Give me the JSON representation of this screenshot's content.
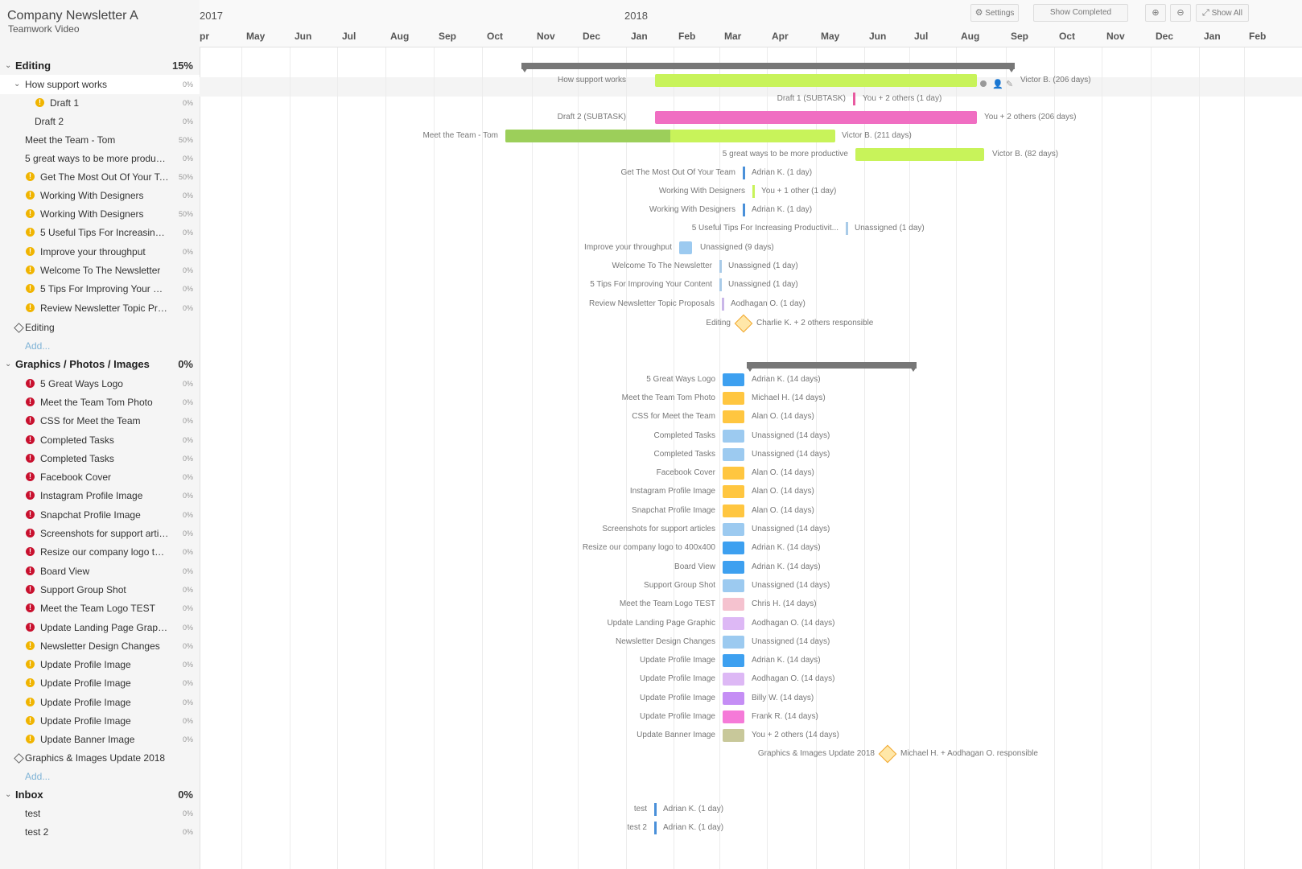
{
  "project": {
    "title": "Company Newsletter A",
    "subtitle": "Teamwork Video"
  },
  "toolbar": {
    "settings": "Settings",
    "show_completed": "Show Completed",
    "show_all": "Show All"
  },
  "timeline": {
    "years": [
      {
        "label": "2017"
      },
      {
        "label": "2018"
      }
    ],
    "months": [
      "pr",
      "May",
      "Jun",
      "Jul",
      "Aug",
      "Sep",
      "Oct",
      "Nov",
      "Dec",
      "Jan",
      "Feb",
      "Mar",
      "Apr",
      "May",
      "Jun",
      "Jul",
      "Aug",
      "Sep",
      "Oct",
      "Nov",
      "Dec",
      "Jan",
      "Feb"
    ]
  },
  "sidebar": {
    "rows": [
      {
        "type": "group",
        "label": "Editing",
        "pct": "15%"
      },
      {
        "type": "task",
        "indent": 1,
        "chev": true,
        "label": "How support works",
        "pct": "0%",
        "hl": true
      },
      {
        "type": "task",
        "indent": 2,
        "badge": "y",
        "label": "Draft 1",
        "pct": "0%"
      },
      {
        "type": "task",
        "indent": 2,
        "label": "Draft 2",
        "pct": "0%"
      },
      {
        "type": "task",
        "indent": 1,
        "label": "Meet the Team - Tom",
        "pct": "50%"
      },
      {
        "type": "task",
        "indent": 1,
        "label": "5 great ways to be more producti...",
        "pct": "0%"
      },
      {
        "type": "task",
        "indent": 1,
        "badge": "y",
        "label": "Get The Most Out Of Your Te...",
        "pct": "50%"
      },
      {
        "type": "task",
        "indent": 1,
        "badge": "y",
        "label": "Working With Designers",
        "pct": "0%"
      },
      {
        "type": "task",
        "indent": 1,
        "badge": "y",
        "label": "Working With Designers",
        "pct": "50%"
      },
      {
        "type": "task",
        "indent": 1,
        "badge": "y",
        "label": "5 Useful Tips For Increasing ...",
        "pct": "0%"
      },
      {
        "type": "task",
        "indent": 1,
        "badge": "y",
        "label": "Improve your throughput",
        "pct": "0%"
      },
      {
        "type": "task",
        "indent": 1,
        "badge": "y",
        "label": "Welcome To The Newsletter",
        "pct": "0%"
      },
      {
        "type": "task",
        "indent": 1,
        "badge": "y",
        "label": "5 Tips For Improving Your Co...",
        "pct": "0%"
      },
      {
        "type": "task",
        "indent": 1,
        "badge": "y",
        "label": "Review Newsletter Topic Pro...",
        "pct": "0%"
      },
      {
        "type": "milestone",
        "label": "Editing"
      },
      {
        "type": "add",
        "label": "Add..."
      },
      {
        "type": "group",
        "label": "Graphics / Photos / Images",
        "pct": "0%"
      },
      {
        "type": "task",
        "indent": 1,
        "badge": "r",
        "label": "5 Great Ways Logo",
        "pct": "0%"
      },
      {
        "type": "task",
        "indent": 1,
        "badge": "r",
        "label": "Meet the Team Tom Photo",
        "pct": "0%"
      },
      {
        "type": "task",
        "indent": 1,
        "badge": "r",
        "label": "CSS for Meet the Team",
        "pct": "0%"
      },
      {
        "type": "task",
        "indent": 1,
        "badge": "r",
        "label": "Completed Tasks",
        "pct": "0%"
      },
      {
        "type": "task",
        "indent": 1,
        "badge": "r",
        "label": "Completed Tasks",
        "pct": "0%"
      },
      {
        "type": "task",
        "indent": 1,
        "badge": "r",
        "label": "Facebook Cover",
        "pct": "0%"
      },
      {
        "type": "task",
        "indent": 1,
        "badge": "r",
        "label": "Instagram Profile Image",
        "pct": "0%"
      },
      {
        "type": "task",
        "indent": 1,
        "badge": "r",
        "label": "Snapchat Profile Image",
        "pct": "0%"
      },
      {
        "type": "task",
        "indent": 1,
        "badge": "r",
        "label": "Screenshots for support articl...",
        "pct": "0%"
      },
      {
        "type": "task",
        "indent": 1,
        "badge": "r",
        "label": "Resize our company logo to 4...",
        "pct": "0%"
      },
      {
        "type": "task",
        "indent": 1,
        "badge": "r",
        "label": "Board View",
        "pct": "0%"
      },
      {
        "type": "task",
        "indent": 1,
        "badge": "r",
        "label": "Support Group Shot",
        "pct": "0%"
      },
      {
        "type": "task",
        "indent": 1,
        "badge": "r",
        "label": "Meet the Team Logo TEST",
        "pct": "0%"
      },
      {
        "type": "task",
        "indent": 1,
        "badge": "r",
        "label": "Update Landing Page Graphic",
        "pct": "0%"
      },
      {
        "type": "task",
        "indent": 1,
        "badge": "y",
        "label": "Newsletter Design Changes",
        "pct": "0%"
      },
      {
        "type": "task",
        "indent": 1,
        "badge": "y",
        "label": "Update Profile Image",
        "pct": "0%"
      },
      {
        "type": "task",
        "indent": 1,
        "badge": "y",
        "label": "Update Profile Image",
        "pct": "0%"
      },
      {
        "type": "task",
        "indent": 1,
        "badge": "y",
        "label": "Update Profile Image",
        "pct": "0%"
      },
      {
        "type": "task",
        "indent": 1,
        "badge": "y",
        "label": "Update Profile Image",
        "pct": "0%"
      },
      {
        "type": "task",
        "indent": 1,
        "badge": "y",
        "label": "Update Banner Image",
        "pct": "0%"
      },
      {
        "type": "milestone",
        "label": "Graphics & Images Update 2018"
      },
      {
        "type": "add",
        "label": "Add..."
      },
      {
        "type": "group",
        "label": "Inbox",
        "pct": "0%"
      },
      {
        "type": "task",
        "indent": 1,
        "label": "test",
        "pct": "0%"
      },
      {
        "type": "task",
        "indent": 1,
        "label": "test 2",
        "pct": "0%"
      }
    ]
  },
  "gantt": {
    "items": [
      {
        "row": 1,
        "label": "How support works",
        "right": "Victor B. (206 days)",
        "color": "#c8f35a"
      },
      {
        "row": 2,
        "label": "Draft 1 (SUBTASK)",
        "right": "You + 2 others (1 day)",
        "color": "#e85aa0"
      },
      {
        "row": 3,
        "label": "Draft 2 (SUBTASK)",
        "right": "You + 2 others (206 days)",
        "color": "#f06ec2"
      },
      {
        "row": 4,
        "label": "Meet the Team - Tom",
        "right": "Victor B. (211 days)",
        "color": "#c8f35a",
        "progress": 0.5,
        "progress_color": "#9ccf5a"
      },
      {
        "row": 5,
        "label": "5 great ways to be more productive",
        "right": "Victor B. (82 days)",
        "color": "#c8f35a"
      },
      {
        "row": 6,
        "label": "Get The Most Out Of Your Team",
        "right": "Adrian K. (1 day)",
        "color": "#4a90d9"
      },
      {
        "row": 7,
        "label": "Working With Designers",
        "right": "You + 1 other (1 day)",
        "color": "#c8f35a"
      },
      {
        "row": 8,
        "label": "Working With Designers",
        "right": "Adrian K. (1 day)",
        "color": "#4a90d9"
      },
      {
        "row": 9,
        "label": "5 Useful Tips For Increasing Productivit...",
        "right": "Unassigned (1 day)",
        "color": "#a9cbe8"
      },
      {
        "row": 10,
        "label": "Improve your throughput",
        "right": "Unassigned (9 days)",
        "color": "#9ccaf0"
      },
      {
        "row": 11,
        "label": "Welcome To The Newsletter",
        "right": "Unassigned (1 day)",
        "color": "#a9cbe8"
      },
      {
        "row": 12,
        "label": "5 Tips For Improving Your Content",
        "right": "Unassigned (1 day)",
        "color": "#a9cbe8"
      },
      {
        "row": 13,
        "label": "Review Newsletter Topic Proposals",
        "right": "Aodhagan O. (1 day)",
        "color": "#c9b6e8"
      },
      {
        "row": 14,
        "label": "Editing",
        "right": "Charlie K. + 2 others responsible",
        "milestone": true
      },
      {
        "row": 17,
        "label": "5 Great Ways Logo",
        "right": "Adrian K. (14 days)",
        "color": "#3da0f0"
      },
      {
        "row": 18,
        "label": "Meet the Team Tom Photo",
        "right": "Michael H. (14 days)",
        "color": "#ffc640"
      },
      {
        "row": 19,
        "label": "CSS for Meet the Team",
        "right": "Alan O. (14 days)",
        "color": "#ffc640"
      },
      {
        "row": 20,
        "label": "Completed Tasks",
        "right": "Unassigned (14 days)",
        "color": "#9ccaf0"
      },
      {
        "row": 21,
        "label": "Completed Tasks",
        "right": "Unassigned (14 days)",
        "color": "#9ccaf0"
      },
      {
        "row": 22,
        "label": "Facebook Cover",
        "right": "Alan O. (14 days)",
        "color": "#ffc640"
      },
      {
        "row": 23,
        "label": "Instagram Profile Image",
        "right": "Alan O. (14 days)",
        "color": "#ffc640"
      },
      {
        "row": 24,
        "label": "Snapchat Profile Image",
        "right": "Alan O. (14 days)",
        "color": "#ffc640"
      },
      {
        "row": 25,
        "label": "Screenshots for support articles",
        "right": "Unassigned (14 days)",
        "color": "#9ccaf0"
      },
      {
        "row": 26,
        "label": "Resize our company logo to 400x400",
        "right": "Adrian K. (14 days)",
        "color": "#3da0f0"
      },
      {
        "row": 27,
        "label": "Board View",
        "right": "Adrian K. (14 days)",
        "color": "#3da0f0"
      },
      {
        "row": 28,
        "label": "Support Group Shot",
        "right": "Unassigned (14 days)",
        "color": "#9ccaf0"
      },
      {
        "row": 29,
        "label": "Meet the Team Logo TEST",
        "right": "Chris H. (14 days)",
        "color": "#f5c2cf"
      },
      {
        "row": 30,
        "label": "Update Landing Page Graphic",
        "right": "Aodhagan O. (14 days)",
        "color": "#ddb8f5"
      },
      {
        "row": 31,
        "label": "Newsletter Design Changes",
        "right": "Unassigned (14 days)",
        "color": "#9ccaf0"
      },
      {
        "row": 32,
        "label": "Update Profile Image",
        "right": "Adrian K. (14 days)",
        "color": "#3da0f0"
      },
      {
        "row": 33,
        "label": "Update Profile Image",
        "right": "Aodhagan O. (14 days)",
        "color": "#ddb8f5"
      },
      {
        "row": 34,
        "label": "Update Profile Image",
        "right": "Billy W. (14 days)",
        "color": "#c58ef5"
      },
      {
        "row": 35,
        "label": "Update Profile Image",
        "right": "Frank R. (14 days)",
        "color": "#f57ad8"
      },
      {
        "row": 36,
        "label": "Update Banner Image",
        "right": "You + 2 others (14 days)",
        "color": "#c8c89a"
      },
      {
        "row": 37,
        "label": "Graphics & Images Update 2018",
        "right": "Michael H. + Aodhagan O. responsible",
        "milestone": true
      },
      {
        "row": 40,
        "label": "test",
        "right": "Adrian K. (1 day)",
        "color": "#4a90d9"
      },
      {
        "row": 41,
        "label": "test 2",
        "right": "Adrian K. (1 day)",
        "color": "#4a90d9"
      }
    ]
  }
}
